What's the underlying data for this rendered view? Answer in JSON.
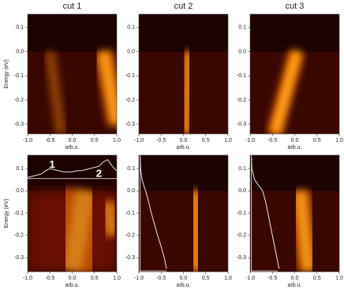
{
  "chart_data": [
    {
      "type": "image",
      "title": "cut 1",
      "ylabel": "Energy (eV)",
      "xlabel": "arb.u.",
      "xlim": [
        -1,
        1
      ],
      "ylim": [
        -0.34,
        0.155
      ],
      "xticks": [
        {
          "value": -1,
          "label": "-1.0"
        },
        {
          "value": -0.5,
          "label": "-0.5"
        },
        {
          "value": 0,
          "label": "0.0"
        },
        {
          "value": 0.5,
          "label": "0.5"
        },
        {
          "value": 1,
          "label": "1.0"
        }
      ],
      "yticks": [
        0.1,
        {
          "value": 0,
          "label": "0.0"
        },
        -0.1,
        -0.2,
        -0.3
      ]
    },
    {
      "type": "image",
      "title": "cut 2",
      "xlabel": "arb.u.",
      "xlim": [
        -1,
        1
      ],
      "ylim": [
        -0.34,
        0.155
      ],
      "xticks": [
        {
          "value": -1,
          "label": "-1.0"
        },
        {
          "value": -0.5,
          "label": "-0.5"
        },
        {
          "value": 0,
          "label": "0.0"
        },
        {
          "value": 0.5,
          "label": "0.5"
        },
        {
          "value": 1,
          "label": "1.0"
        }
      ],
      "yticks": [
        0.1,
        {
          "value": 0,
          "label": "0.0"
        },
        -0.1,
        -0.2,
        -0.3
      ]
    },
    {
      "type": "image",
      "title": "cut 3",
      "xlabel": "arb.u.",
      "xlim": [
        -1,
        1
      ],
      "ylim": [
        -0.34,
        0.155
      ],
      "xticks": [
        {
          "value": -1,
          "label": "-1.0"
        },
        {
          "value": -0.5,
          "label": "-0.5"
        },
        {
          "value": 0,
          "label": "0.0"
        },
        {
          "value": 0.5,
          "label": "0.5"
        },
        {
          "value": 1,
          "label": "1.0"
        }
      ],
      "yticks": [
        0.1,
        {
          "value": 0,
          "label": "0.0"
        },
        -0.1,
        -0.2,
        -0.3
      ]
    },
    {
      "type": "mdc",
      "ylabel": "Energy (eV)",
      "xlabel": "arb.u.",
      "annotations": [
        "1",
        "2"
      ],
      "xlim": [
        -1,
        1
      ],
      "ylim": [
        -0.363,
        0.16
      ],
      "xticks": [
        {
          "value": -1,
          "label": "-1.0"
        },
        {
          "value": -0.5,
          "label": "-0.5"
        },
        {
          "value": 0,
          "label": "0.0"
        },
        {
          "value": 0.5,
          "label": "0.5"
        },
        {
          "value": 1,
          "label": "1.0"
        }
      ],
      "yticks": [
        0.1,
        {
          "value": 0,
          "label": "0.0"
        },
        -0.1,
        -0.2,
        -0.3
      ],
      "series": [
        {
          "color": "#ffffff",
          "x": [
            -1,
            -0.9,
            -0.8,
            -0.7,
            -0.6,
            -0.5,
            -0.4,
            -0.3,
            -0.2,
            -0.1,
            0,
            0.1,
            0.2,
            0.3,
            0.4,
            0.5,
            0.6,
            0.7,
            0.8,
            0.9,
            1
          ],
          "values": [
            0.06,
            0.065,
            0.07,
            0.075,
            0.09,
            0.1,
            0.095,
            0.09,
            0.085,
            0.085,
            0.085,
            0.09,
            0.09,
            0.095,
            0.1,
            0.105,
            0.11,
            0.13,
            0.14,
            0.11,
            0.09
          ]
        }
      ]
    },
    {
      "type": "edc",
      "xlabel": "arb.u.",
      "xlim": [
        -1,
        1
      ],
      "ylim": [
        -0.363,
        0.16
      ],
      "xticks": [
        {
          "value": -1,
          "label": "-1.0"
        },
        {
          "value": -0.5,
          "label": "-0.5"
        },
        {
          "value": 0,
          "label": "0.0"
        },
        {
          "value": 0.5,
          "label": "0.5"
        },
        {
          "value": 1,
          "label": "1.0"
        }
      ],
      "yticks": [
        0.1,
        {
          "value": 0,
          "label": "0.0"
        },
        -0.1,
        -0.2,
        -0.3
      ],
      "series": [
        {
          "color": "#ffffff",
          "x": [
            -0.97,
            -0.96,
            -0.93,
            -0.85,
            -0.78,
            -0.72,
            -0.65,
            -0.58,
            -0.5,
            -0.43,
            -0.38
          ],
          "values": [
            0.15,
            0.1,
            0.05,
            0,
            -0.05,
            -0.1,
            -0.15,
            -0.2,
            -0.25,
            -0.3,
            -0.35
          ]
        }
      ]
    },
    {
      "type": "edc",
      "xlabel": "arb.u.",
      "xlim": [
        -1,
        1
      ],
      "ylim": [
        -0.363,
        0.16
      ],
      "xticks": [
        {
          "value": -1,
          "label": "-1.0"
        },
        {
          "value": -0.5,
          "label": "-0.5"
        },
        {
          "value": 0,
          "label": "0.0"
        },
        {
          "value": 0.5,
          "label": "0.5"
        },
        {
          "value": 1,
          "label": "1.0"
        }
      ],
      "yticks": [
        0.1,
        {
          "value": 0,
          "label": "0.0"
        },
        -0.1,
        -0.2,
        -0.3
      ],
      "series": [
        {
          "color": "#ffffff",
          "x": [
            -0.97,
            -0.96,
            -0.9,
            -0.72,
            -0.65,
            -0.6,
            -0.55,
            -0.5,
            -0.45,
            -0.4,
            -0.35
          ],
          "values": [
            0.15,
            0.1,
            0.05,
            0,
            -0.05,
            -0.1,
            -0.15,
            -0.2,
            -0.25,
            -0.3,
            -0.35
          ]
        }
      ]
    }
  ]
}
